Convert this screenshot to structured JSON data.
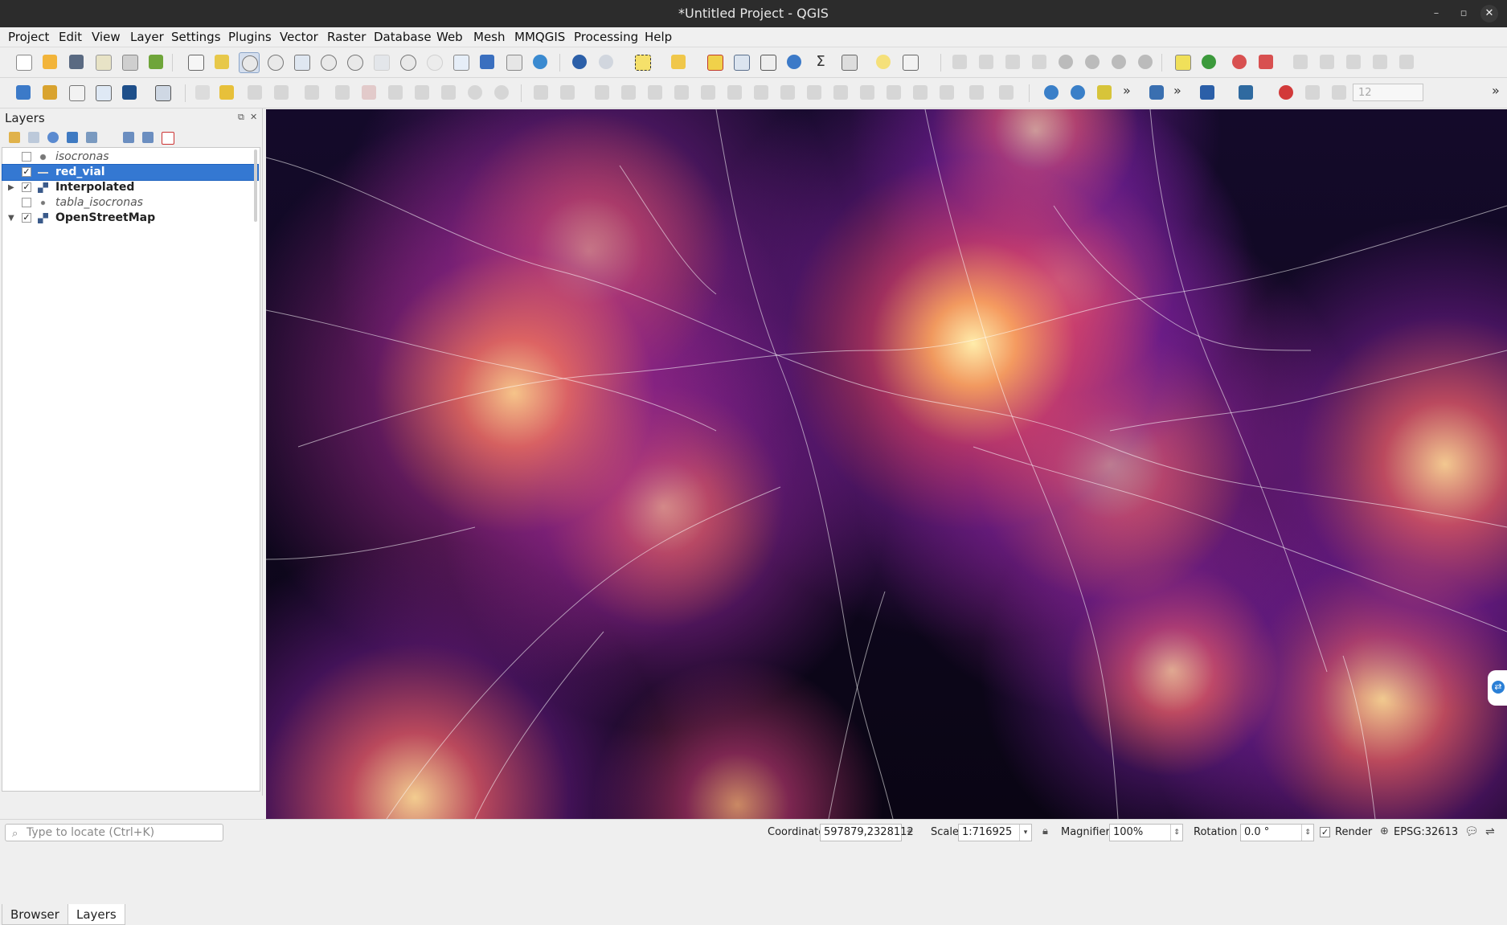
{
  "window": {
    "title": "*Untitled Project - QGIS",
    "controls": [
      "–",
      "▫",
      "✕"
    ]
  },
  "menu": {
    "items": [
      "Project",
      "Edit",
      "View",
      "Layer",
      "Settings",
      "Plugins",
      "Vector",
      "Raster",
      "Database",
      "Web",
      "Mesh",
      "MMQGIS",
      "Processing",
      "Help"
    ]
  },
  "toolbar": {
    "overflow_glyph": "»",
    "spin_value": "12"
  },
  "layers_panel": {
    "title": "Layers",
    "float_glyph": "⧉",
    "close_glyph": "✕",
    "layers": [
      {
        "name": "isocronas",
        "checked": false,
        "style": "italic",
        "expander": "",
        "icon": "point-layer-icon"
      },
      {
        "name": "red_vial",
        "checked": true,
        "style": "bold",
        "expander": "",
        "icon": "line-layer-icon",
        "selected": true
      },
      {
        "name": "Interpolated",
        "checked": true,
        "style": "bold",
        "expander": "▶",
        "icon": "raster-layer-icon"
      },
      {
        "name": "tabla_isocronas",
        "checked": false,
        "style": "italic",
        "expander": "",
        "icon": "table-layer-icon"
      },
      {
        "name": "OpenStreetMap",
        "checked": true,
        "style": "bold",
        "expander": "▼",
        "icon": "raster-layer-icon"
      }
    ],
    "tabs": [
      "Browser",
      "Layers"
    ]
  },
  "status": {
    "locator_placeholder": "Type to locate (Ctrl+K)",
    "coordinate_label": "Coordinate",
    "coordinate_value": "597879,2328112",
    "scale_label": "Scale",
    "scale_value": "1:716925",
    "magnifier_label": "Magnifier",
    "magnifier_value": "100%",
    "rotation_label": "Rotation",
    "rotation_value": "0.0 °",
    "render_label": "Render",
    "render_checked": true,
    "crs": "EPSG:32613"
  },
  "colors": {
    "selection": "#3478d2",
    "heat_core": "#ffe9a8",
    "heat_mid": "#e8606a",
    "heat_low": "#7a2a9a",
    "map_bg": "#0a0514"
  }
}
